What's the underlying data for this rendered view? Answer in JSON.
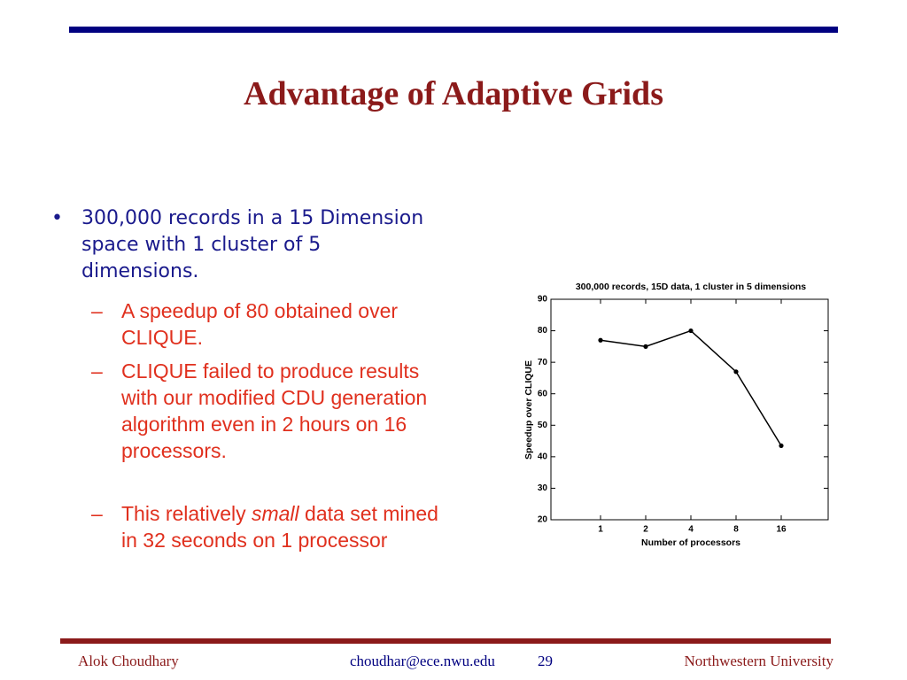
{
  "header": {
    "title": "Advantage of Adaptive Grids"
  },
  "body": {
    "bullet": "300,000 records in a 15 Dimension space with 1 cluster of 5 dimensions.",
    "sub_bullets": [
      [
        "A speedup of 80 obtained over CLIQUE."
      ],
      [
        "CLIQUE failed to produce results with our modified CDU generation algorithm even in 2 hours on 16 processors."
      ],
      [
        "This relatively ",
        "small",
        " data set mined in  32 seconds on 1 processor"
      ]
    ]
  },
  "chart_data": {
    "type": "line",
    "title": "300,000 records, 15D data, 1 cluster in 5 dimensions",
    "x_label": "Number of processors",
    "y_label": "Speedup over CLIQUE",
    "categories": [
      "1",
      "2",
      "4",
      "8",
      "16"
    ],
    "values": [
      77,
      75,
      80,
      67,
      43.5
    ],
    "color": "#000000",
    "ylim": [
      20,
      90
    ],
    "yticks": [
      20,
      30,
      40,
      50,
      60,
      70,
      80,
      90
    ],
    "grid": false
  },
  "footer": {
    "author": "Alok Choudhary",
    "email": "choudhar@ece.nwu.edu",
    "page": "29",
    "institution": "Northwestern University"
  }
}
